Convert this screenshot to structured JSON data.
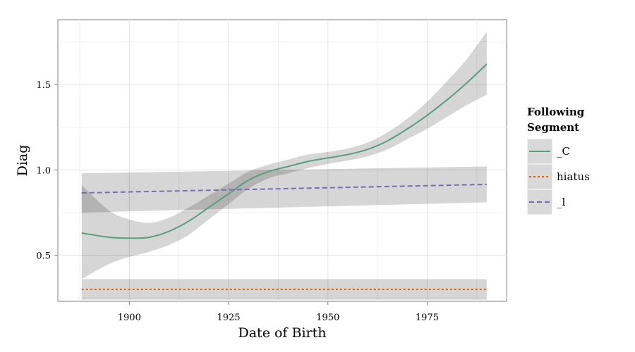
{
  "chart_data": {
    "type": "line",
    "title": "",
    "xlabel": "Date of Birth",
    "ylabel": "Diag",
    "xlim": [
      1882,
      1995
    ],
    "ylim": [
      0.23,
      1.88
    ],
    "x_ticks": [
      1900,
      1925,
      1950,
      1975
    ],
    "y_ticks": [
      0.5,
      1.0,
      1.5
    ],
    "x_tick_labels": [
      "1900",
      "1925",
      "1950",
      "1975"
    ],
    "y_tick_labels": [
      "0.5",
      "1.0",
      "1.5"
    ],
    "grid": true,
    "legend": {
      "title": "Following Segment",
      "placement": "right"
    },
    "series": [
      {
        "name": "_C",
        "color": "#5a9e7c",
        "dash": "solid",
        "x": [
          1888,
          1895,
          1900,
          1905,
          1910,
          1915,
          1920,
          1925,
          1930,
          1935,
          1940,
          1945,
          1950,
          1955,
          1960,
          1965,
          1970,
          1975,
          1980,
          1985,
          1990
        ],
        "y": [
          0.63,
          0.605,
          0.6,
          0.605,
          0.64,
          0.7,
          0.78,
          0.86,
          0.94,
          0.99,
          1.02,
          1.05,
          1.07,
          1.09,
          1.12,
          1.17,
          1.24,
          1.32,
          1.41,
          1.51,
          1.62
        ],
        "ci_lower": [
          0.36,
          0.45,
          0.49,
          0.52,
          0.56,
          0.62,
          0.71,
          0.8,
          0.89,
          0.95,
          0.98,
          1.01,
          1.035,
          1.055,
          1.08,
          1.12,
          1.18,
          1.24,
          1.31,
          1.38,
          1.44
        ],
        "ci_upper": [
          0.91,
          0.76,
          0.71,
          0.69,
          0.72,
          0.78,
          0.85,
          0.92,
          0.99,
          1.03,
          1.06,
          1.09,
          1.105,
          1.125,
          1.16,
          1.22,
          1.3,
          1.4,
          1.52,
          1.65,
          1.81
        ]
      },
      {
        "name": "hiatus",
        "color": "#d2691e",
        "dash": "dotted",
        "x": [
          1888,
          1990
        ],
        "y": [
          0.3,
          0.3
        ],
        "ci_lower": [
          0.24,
          0.24
        ],
        "ci_upper": [
          0.36,
          0.36
        ]
      },
      {
        "name": "_l",
        "color": "#7b6bb5",
        "dash": "dashed",
        "x": [
          1888,
          1990
        ],
        "y": [
          0.865,
          0.915
        ],
        "ci_lower": [
          0.75,
          0.81
        ],
        "ci_upper": [
          0.98,
          1.02
        ]
      }
    ]
  }
}
